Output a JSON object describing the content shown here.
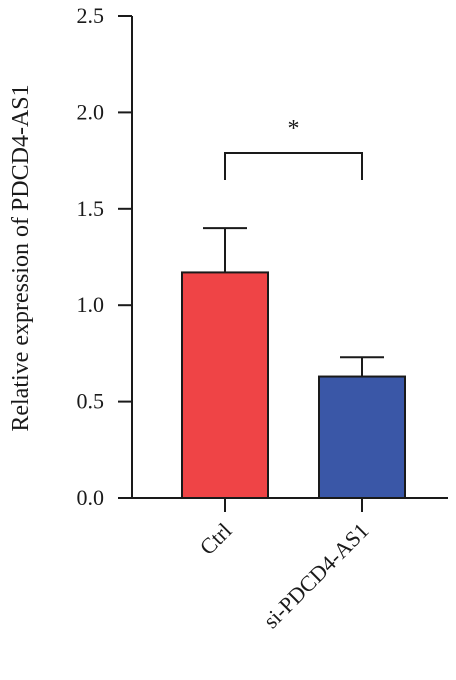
{
  "chart_data": {
    "type": "bar",
    "categories": [
      "Ctrl",
      "si-PDCD4-AS1"
    ],
    "values": [
      1.17,
      0.63
    ],
    "error_upper": [
      1.4,
      0.73
    ],
    "colors": [
      "#ef4446",
      "#3a57a7"
    ],
    "ylabel": "Relative expression of PDCD4-AS1",
    "xlabel": "",
    "ylim": [
      0,
      2.5
    ],
    "yticks": [
      "0.0",
      "0.5",
      "1.0",
      "1.5",
      "2.0",
      "2.5"
    ],
    "significance": {
      "between": [
        "Ctrl",
        "si-PDCD4-AS1"
      ],
      "label": "*"
    },
    "grid": false
  }
}
